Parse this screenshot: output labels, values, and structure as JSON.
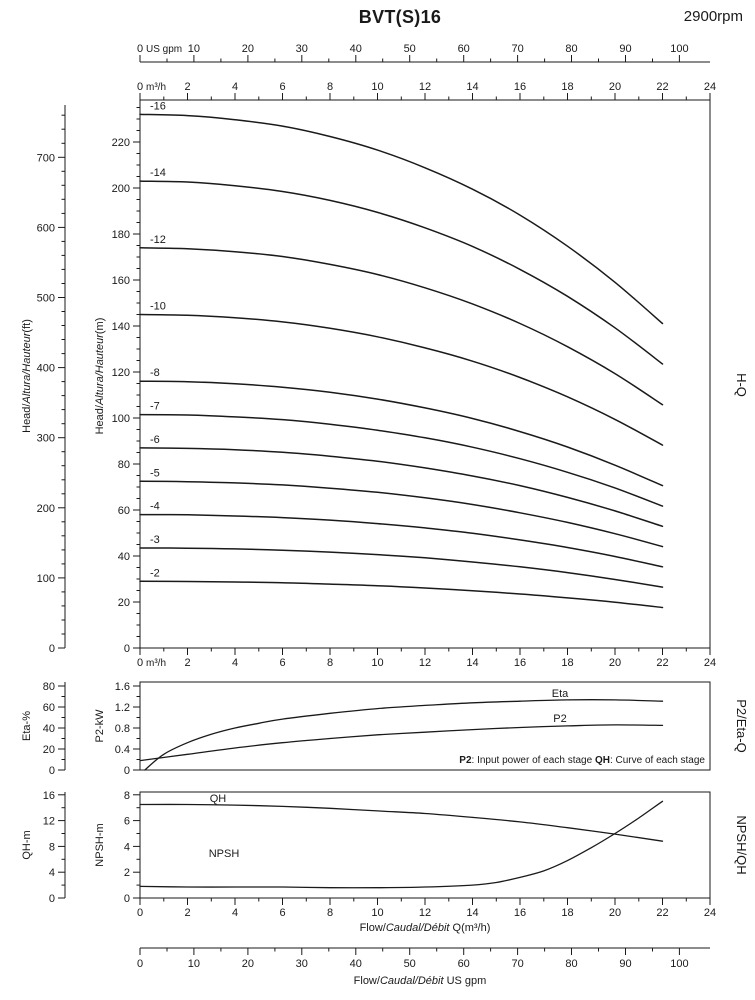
{
  "header": {
    "title": "BVT(S)16",
    "rpm": "2900rpm"
  },
  "axes": {
    "gpm": {
      "unit": "US gpm",
      "ticks": [
        0,
        10,
        20,
        30,
        40,
        50,
        60,
        70,
        80,
        90,
        100
      ]
    },
    "m3h": {
      "unit": "m³/h",
      "ticks": [
        0,
        2,
        4,
        6,
        8,
        10,
        12,
        14,
        16,
        18,
        20,
        22,
        24
      ]
    },
    "head_ft": {
      "label_parts": [
        "Head/",
        "Altura/Hauteur",
        "(ft)"
      ],
      "ticks": [
        0,
        100,
        200,
        300,
        400,
        500,
        600,
        700
      ]
    },
    "head_m": {
      "label_parts": [
        "Head/",
        "Altura/Hauteur",
        "(m)"
      ],
      "ticks": [
        0,
        20,
        40,
        60,
        80,
        100,
        120,
        140,
        160,
        180,
        200,
        220
      ]
    },
    "eta": {
      "label": "Eta-%",
      "ticks": [
        0,
        20,
        40,
        60,
        80
      ]
    },
    "p2": {
      "label": "P2-kW",
      "ticks": [
        0,
        0.4,
        0.8,
        1.2,
        1.6
      ]
    },
    "qh": {
      "label": "QH-m",
      "ticks": [
        0,
        4,
        8,
        12,
        16
      ]
    },
    "npsh": {
      "label": "NPSH-m",
      "ticks": [
        0,
        2,
        4,
        6,
        8
      ]
    },
    "flow_titles": {
      "m3h_parts": [
        "Flow/",
        "Caudal/Débit",
        " Q(m³/h)"
      ],
      "gpm_parts": [
        "Flow/",
        "Caudal/Débit",
        "  US gpm"
      ]
    }
  },
  "right_labels": {
    "hq": "H-Q",
    "p2eta": "P2/Eta-Q",
    "npshqh": "NPSH/QH"
  },
  "note": {
    "p2_term": "P2",
    "p2_desc": ": Input power of each stage  ",
    "qh_term": "QH",
    "qh_desc": ": Curve of each stage"
  },
  "chart_data": [
    {
      "type": "line",
      "title": "H-Q",
      "xlabel": "Flow Q (m³/h)",
      "ylabel": "Head (m)",
      "xlim": [
        0,
        24
      ],
      "ylim": [
        0,
        240
      ],
      "x": [
        0,
        2,
        4,
        6,
        8,
        10,
        12,
        14,
        16,
        18,
        20,
        22
      ],
      "series": [
        {
          "name": "-2",
          "values": [
            29.0,
            28.9,
            28.7,
            28.4,
            27.8,
            27.1,
            26.1,
            24.9,
            23.5,
            21.8,
            19.9,
            17.6
          ]
        },
        {
          "name": "-3",
          "values": [
            43.5,
            43.4,
            43.1,
            42.5,
            41.7,
            40.6,
            39.2,
            37.4,
            35.3,
            32.8,
            29.8,
            26.5
          ]
        },
        {
          "name": "-4",
          "values": [
            58.0,
            57.9,
            57.4,
            56.7,
            55.6,
            54.1,
            52.2,
            49.9,
            47.0,
            43.7,
            39.8,
            35.3
          ]
        },
        {
          "name": "-5",
          "values": [
            72.5,
            72.3,
            71.8,
            70.9,
            69.5,
            67.7,
            65.3,
            62.4,
            58.8,
            54.6,
            49.7,
            44.1
          ]
        },
        {
          "name": "-6",
          "values": [
            87.0,
            86.8,
            86.2,
            85.1,
            83.4,
            81.2,
            78.3,
            74.8,
            70.6,
            65.5,
            59.6,
            52.9
          ]
        },
        {
          "name": "-7",
          "values": [
            101.5,
            101.3,
            100.5,
            99.3,
            97.3,
            94.7,
            91.4,
            87.3,
            82.3,
            76.4,
            69.6,
            61.7
          ]
        },
        {
          "name": "-8",
          "values": [
            116.0,
            115.8,
            114.9,
            113.4,
            111.2,
            108.2,
            104.4,
            99.8,
            94.1,
            87.4,
            79.5,
            70.6
          ]
        },
        {
          "name": "-10",
          "values": [
            145.0,
            144.7,
            143.6,
            141.8,
            139.0,
            135.3,
            130.5,
            124.7,
            117.6,
            109.2,
            99.4,
            88.2
          ]
        },
        {
          "name": "-12",
          "values": [
            174.0,
            173.6,
            172.3,
            170.2,
            166.8,
            162.4,
            156.6,
            149.6,
            141.1,
            131.0,
            119.3,
            105.8
          ]
        },
        {
          "name": "-14",
          "values": [
            203.0,
            202.6,
            201.0,
            198.5,
            194.6,
            189.4,
            182.7,
            174.6,
            164.6,
            152.9,
            139.2,
            123.5
          ]
        },
        {
          "name": "-16",
          "values": [
            232.0,
            231.5,
            229.7,
            226.9,
            222.4,
            216.5,
            208.8,
            199.5,
            188.2,
            174.7,
            159.0,
            141.1
          ]
        }
      ]
    },
    {
      "type": "line",
      "title": "P2/Eta-Q",
      "xlabel": "Flow Q (m³/h)",
      "xlim": [
        0,
        24
      ],
      "series": [
        {
          "name": "Eta",
          "axis": "eta",
          "unit": "%",
          "points": [
            [
              0.2,
              0
            ],
            [
              1,
              15
            ],
            [
              2,
              26
            ],
            [
              3,
              34
            ],
            [
              4,
              40
            ],
            [
              5,
              44.5
            ],
            [
              6,
              48.5
            ],
            [
              8,
              54
            ],
            [
              10,
              58.5
            ],
            [
              12,
              61.5
            ],
            [
              14,
              64
            ],
            [
              16,
              65.5
            ],
            [
              18,
              66.8
            ],
            [
              20,
              66.8
            ],
            [
              22,
              65.5
            ]
          ]
        },
        {
          "name": "P2",
          "axis": "kw",
          "unit": "kW",
          "points": [
            [
              0,
              0.18
            ],
            [
              2,
              0.3
            ],
            [
              4,
              0.42
            ],
            [
              6,
              0.52
            ],
            [
              8,
              0.6
            ],
            [
              10,
              0.67
            ],
            [
              12,
              0.72
            ],
            [
              14,
              0.77
            ],
            [
              16,
              0.81
            ],
            [
              18,
              0.84
            ],
            [
              20,
              0.86
            ],
            [
              22,
              0.85
            ]
          ]
        }
      ]
    },
    {
      "type": "line",
      "title": "NPSH/QH",
      "xlabel": "Flow Q (m³/h)",
      "xlim": [
        0,
        24
      ],
      "series": [
        {
          "name": "QH",
          "axis": "qh",
          "unit": "m",
          "points": [
            [
              0,
              14.5
            ],
            [
              2,
              14.5
            ],
            [
              4,
              14.4
            ],
            [
              6,
              14.2
            ],
            [
              8,
              13.9
            ],
            [
              10,
              13.5
            ],
            [
              12,
              13.1
            ],
            [
              14,
              12.5
            ],
            [
              16,
              11.8
            ],
            [
              18,
              10.9
            ],
            [
              20,
              9.9
            ],
            [
              22,
              8.8
            ]
          ]
        },
        {
          "name": "NPSH",
          "axis": "npsh",
          "unit": "m",
          "points": [
            [
              0,
              0.9
            ],
            [
              2,
              0.85
            ],
            [
              4,
              0.85
            ],
            [
              6,
              0.85
            ],
            [
              8,
              0.8
            ],
            [
              10,
              0.8
            ],
            [
              12,
              0.85
            ],
            [
              14,
              1.0
            ],
            [
              15,
              1.2
            ],
            [
              16,
              1.6
            ],
            [
              17,
              2.1
            ],
            [
              18,
              2.9
            ],
            [
              19,
              3.9
            ],
            [
              20,
              5.0
            ],
            [
              21,
              6.2
            ],
            [
              22,
              7.5
            ]
          ]
        }
      ]
    }
  ]
}
